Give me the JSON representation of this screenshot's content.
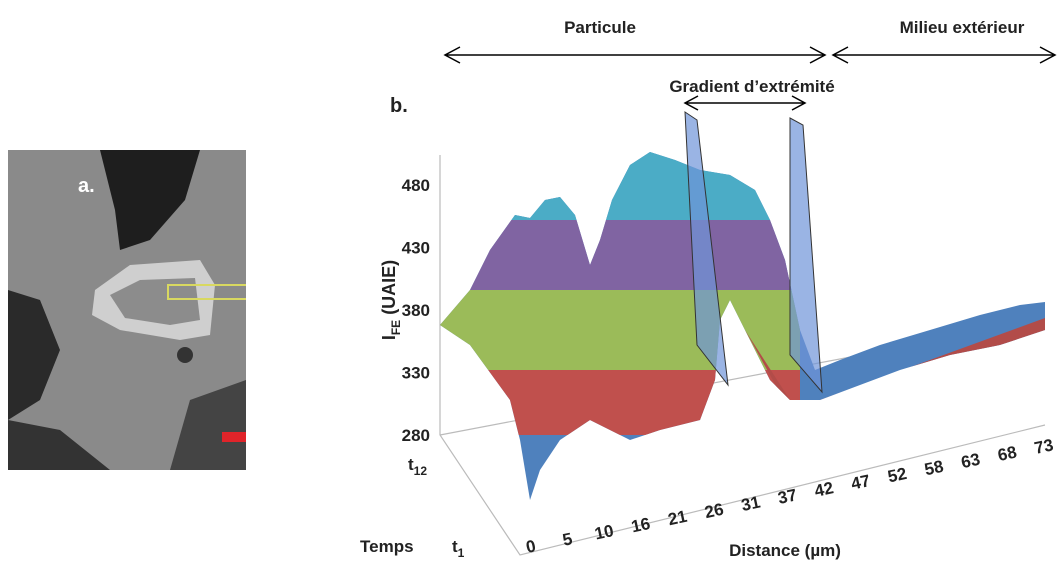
{
  "panel_a": {
    "label": "a."
  },
  "panel_b": {
    "label": "b.",
    "regions": [
      "Particule",
      "Milieu extérieur"
    ],
    "gradient": "Gradient d’extrémité",
    "y_axis": {
      "title": {
        "main": "I",
        "sub": "FE",
        "rest": " (UAIE)"
      },
      "ticks": [
        480,
        430,
        380,
        330,
        280
      ]
    },
    "depth_axis": {
      "title": "Temps",
      "back": {
        "main": "t",
        "sub": "12"
      },
      "front": {
        "main": "t",
        "sub": "1"
      }
    },
    "x_axis": {
      "title": "Distance (µm)",
      "ticks": [
        0,
        5,
        10,
        16,
        21,
        26,
        31,
        37,
        42,
        47,
        52,
        58,
        63,
        68,
        73
      ]
    }
  }
}
